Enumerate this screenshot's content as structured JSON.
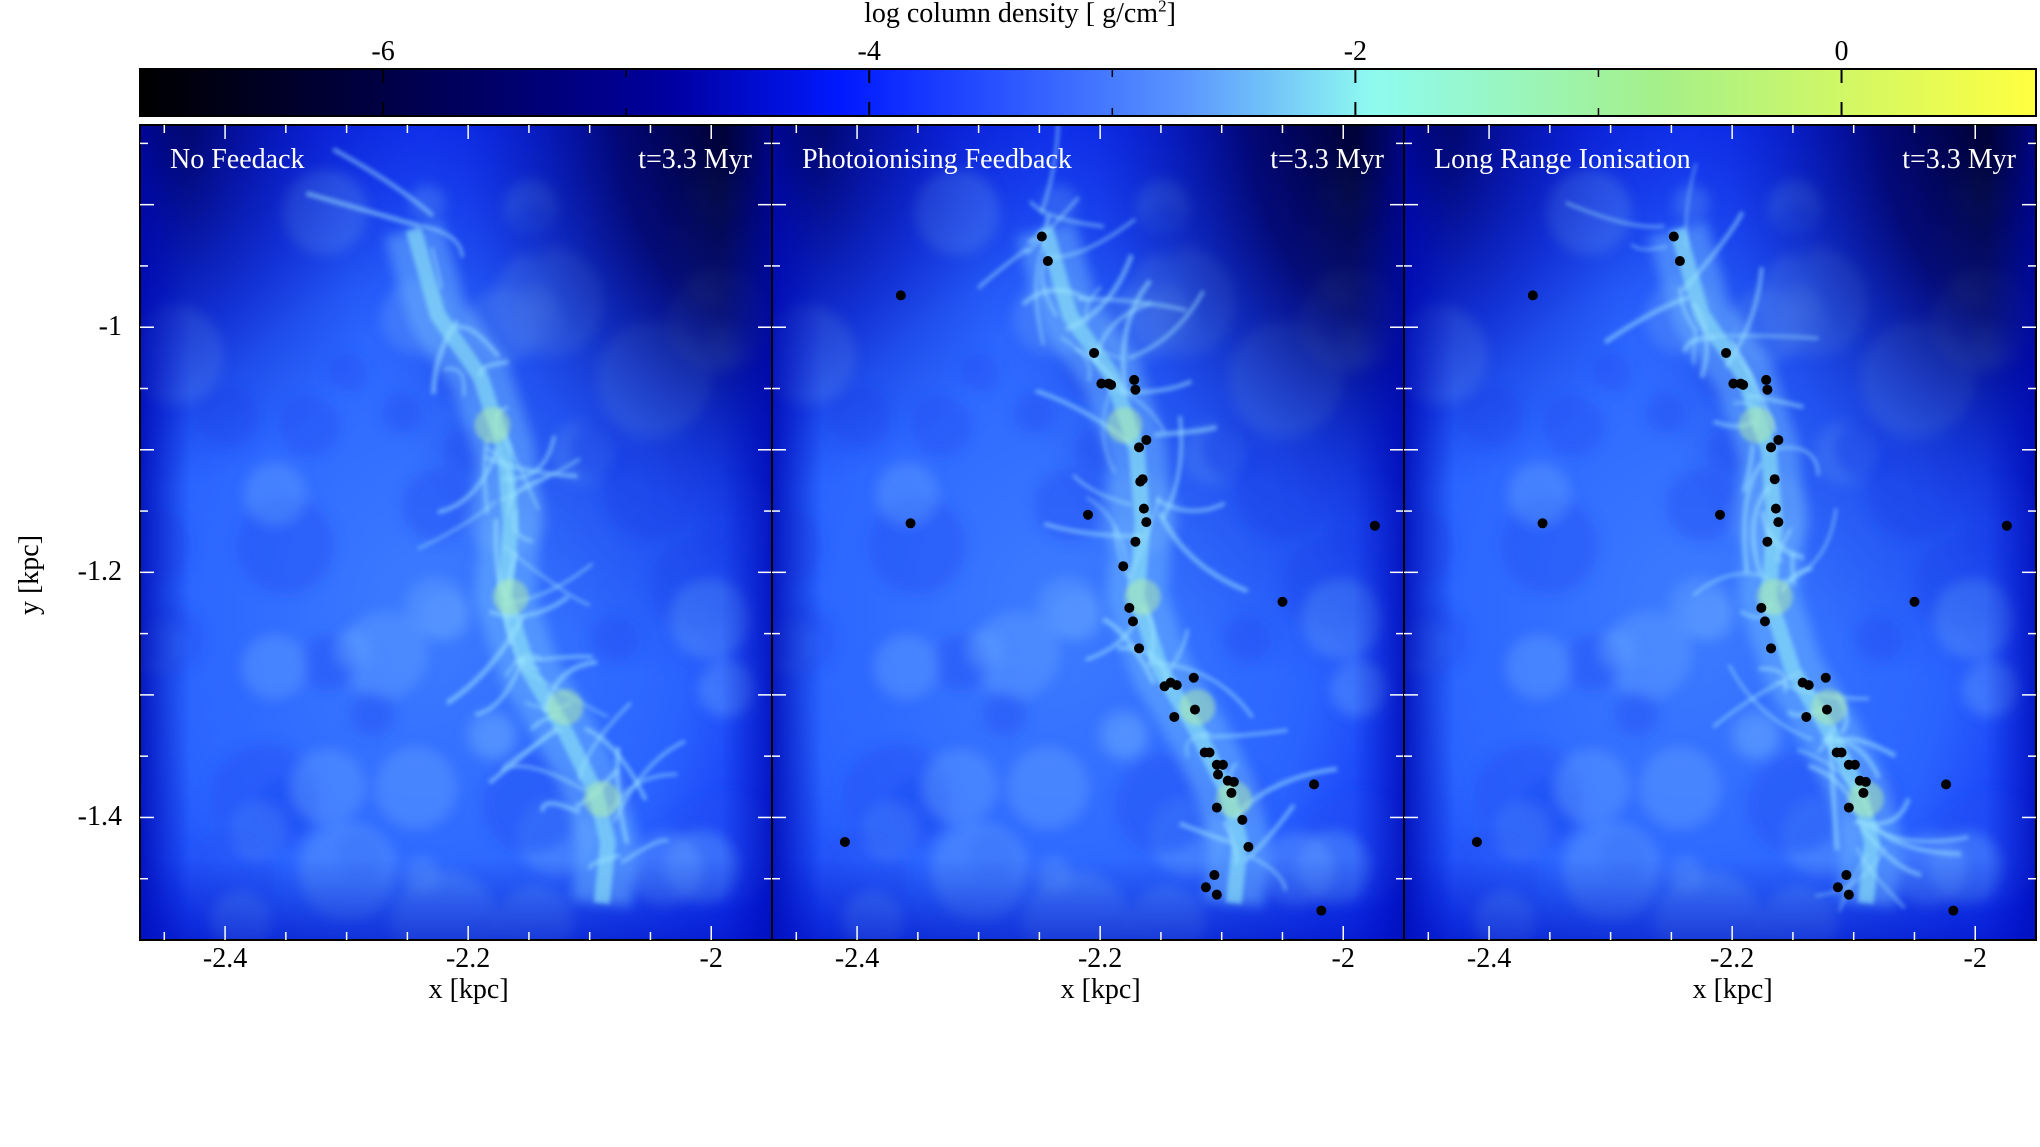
{
  "colorbar": {
    "label_main": "log column density [ g/cm",
    "label_sup": "2",
    "label_end": "]",
    "min": -7,
    "max": 0.8,
    "ticks": [
      -6,
      -4,
      -2,
      0
    ],
    "tick_labels": [
      "-6",
      "-4",
      "-2",
      "0"
    ],
    "colors": [
      "#000000",
      "#00006a",
      "#0019ff",
      "#4d8bff",
      "#8ffbf0",
      "#a4f08a",
      "#ffff40"
    ]
  },
  "axes": {
    "ylabel": "y [kpc]",
    "xlabel": "x [kpc]",
    "y_tick_labels": [
      "-1",
      "-1.2",
      "-1.4"
    ],
    "x_tick_labels": [
      "-2.4",
      "-2.2",
      "-2"
    ]
  },
  "panels": [
    {
      "title": "No Feedack",
      "time": "t=3.3 Myr"
    },
    {
      "title": "Photoionising Feedback",
      "time": "t=3.3 Myr"
    },
    {
      "title": "Long Range Ionisation",
      "time": "t=3.3 Myr"
    }
  ],
  "chart_data": {
    "type": "heatmap",
    "title": "log column density [ g/cm2]",
    "xlabel": "x [kpc]",
    "ylabel": "y [kpc]",
    "xlim": [
      -2.47,
      -1.95
    ],
    "ylim": [
      -1.5,
      -0.835
    ],
    "x_ticks": [
      -2.4,
      -2.2,
      -2.0
    ],
    "y_ticks": [
      -1.0,
      -1.2,
      -1.4
    ],
    "colorbar_range": [
      -7,
      0.8
    ],
    "colorbar_ticks": [
      -6,
      -4,
      -2,
      0
    ],
    "panels": [
      {
        "name": "No Feedack",
        "time": "t=3.3 Myr",
        "sink_particles": []
      },
      {
        "name": "Photoionising Feedback",
        "time": "t=3.3 Myr",
        "sink_particles": [
          [
            -2.248,
            -0.926
          ],
          [
            -2.243,
            -0.946
          ],
          [
            -2.364,
            -0.974
          ],
          [
            -2.205,
            -1.021
          ],
          [
            -2.199,
            -1.046
          ],
          [
            -2.193,
            -1.046
          ],
          [
            -2.191,
            -1.047
          ],
          [
            -2.172,
            -1.043
          ],
          [
            -2.171,
            -1.051
          ],
          [
            -2.162,
            -1.092
          ],
          [
            -2.168,
            -1.098
          ],
          [
            -2.165,
            -1.124
          ],
          [
            -2.167,
            -1.126
          ],
          [
            -2.164,
            -1.148
          ],
          [
            -2.162,
            -1.159
          ],
          [
            -2.21,
            -1.153
          ],
          [
            -2.356,
            -1.16
          ],
          [
            -2.171,
            -1.175
          ],
          [
            -2.181,
            -1.195
          ],
          [
            -2.176,
            -1.229
          ],
          [
            -2.173,
            -1.24
          ],
          [
            -2.168,
            -1.262
          ],
          [
            -2.142,
            -1.29
          ],
          [
            -2.137,
            -1.292
          ],
          [
            -2.147,
            -1.293
          ],
          [
            -2.123,
            -1.286
          ],
          [
            -2.122,
            -1.312
          ],
          [
            -2.139,
            -1.318
          ],
          [
            -2.114,
            -1.347
          ],
          [
            -2.11,
            -1.347
          ],
          [
            -2.104,
            -1.357
          ],
          [
            -2.099,
            -1.357
          ],
          [
            -2.103,
            -1.365
          ],
          [
            -2.095,
            -1.37
          ],
          [
            -2.09,
            -1.371
          ],
          [
            -2.092,
            -1.38
          ],
          [
            -2.104,
            -1.392
          ],
          [
            -2.083,
            -1.402
          ],
          [
            -2.078,
            -1.424
          ],
          [
            -2.05,
            -1.224
          ],
          [
            -2.024,
            -1.373
          ],
          [
            -1.974,
            -1.162
          ],
          [
            -2.41,
            -1.42
          ],
          [
            -2.106,
            -1.447
          ],
          [
            -2.113,
            -1.457
          ],
          [
            -2.104,
            -1.463
          ],
          [
            -2.018,
            -1.476
          ]
        ]
      },
      {
        "name": "Long Range Ionisation",
        "time": "t=3.3 Myr",
        "sink_particles": [
          [
            -2.248,
            -0.926
          ],
          [
            -2.243,
            -0.946
          ],
          [
            -2.364,
            -0.974
          ],
          [
            -2.205,
            -1.021
          ],
          [
            -2.199,
            -1.046
          ],
          [
            -2.193,
            -1.046
          ],
          [
            -2.191,
            -1.047
          ],
          [
            -2.172,
            -1.043
          ],
          [
            -2.171,
            -1.051
          ],
          [
            -2.162,
            -1.092
          ],
          [
            -2.168,
            -1.098
          ],
          [
            -2.165,
            -1.124
          ],
          [
            -2.164,
            -1.148
          ],
          [
            -2.162,
            -1.159
          ],
          [
            -2.21,
            -1.153
          ],
          [
            -2.356,
            -1.16
          ],
          [
            -2.171,
            -1.175
          ],
          [
            -2.176,
            -1.229
          ],
          [
            -2.173,
            -1.24
          ],
          [
            -2.168,
            -1.262
          ],
          [
            -2.142,
            -1.29
          ],
          [
            -2.137,
            -1.292
          ],
          [
            -2.123,
            -1.286
          ],
          [
            -2.122,
            -1.312
          ],
          [
            -2.139,
            -1.318
          ],
          [
            -2.114,
            -1.347
          ],
          [
            -2.11,
            -1.347
          ],
          [
            -2.104,
            -1.357
          ],
          [
            -2.099,
            -1.357
          ],
          [
            -2.095,
            -1.37
          ],
          [
            -2.09,
            -1.371
          ],
          [
            -2.092,
            -1.38
          ],
          [
            -2.104,
            -1.392
          ],
          [
            -2.05,
            -1.224
          ],
          [
            -2.024,
            -1.373
          ],
          [
            -1.974,
            -1.162
          ],
          [
            -2.41,
            -1.42
          ],
          [
            -2.106,
            -1.447
          ],
          [
            -2.113,
            -1.457
          ],
          [
            -2.104,
            -1.463
          ],
          [
            -2.018,
            -1.476
          ]
        ]
      }
    ]
  }
}
